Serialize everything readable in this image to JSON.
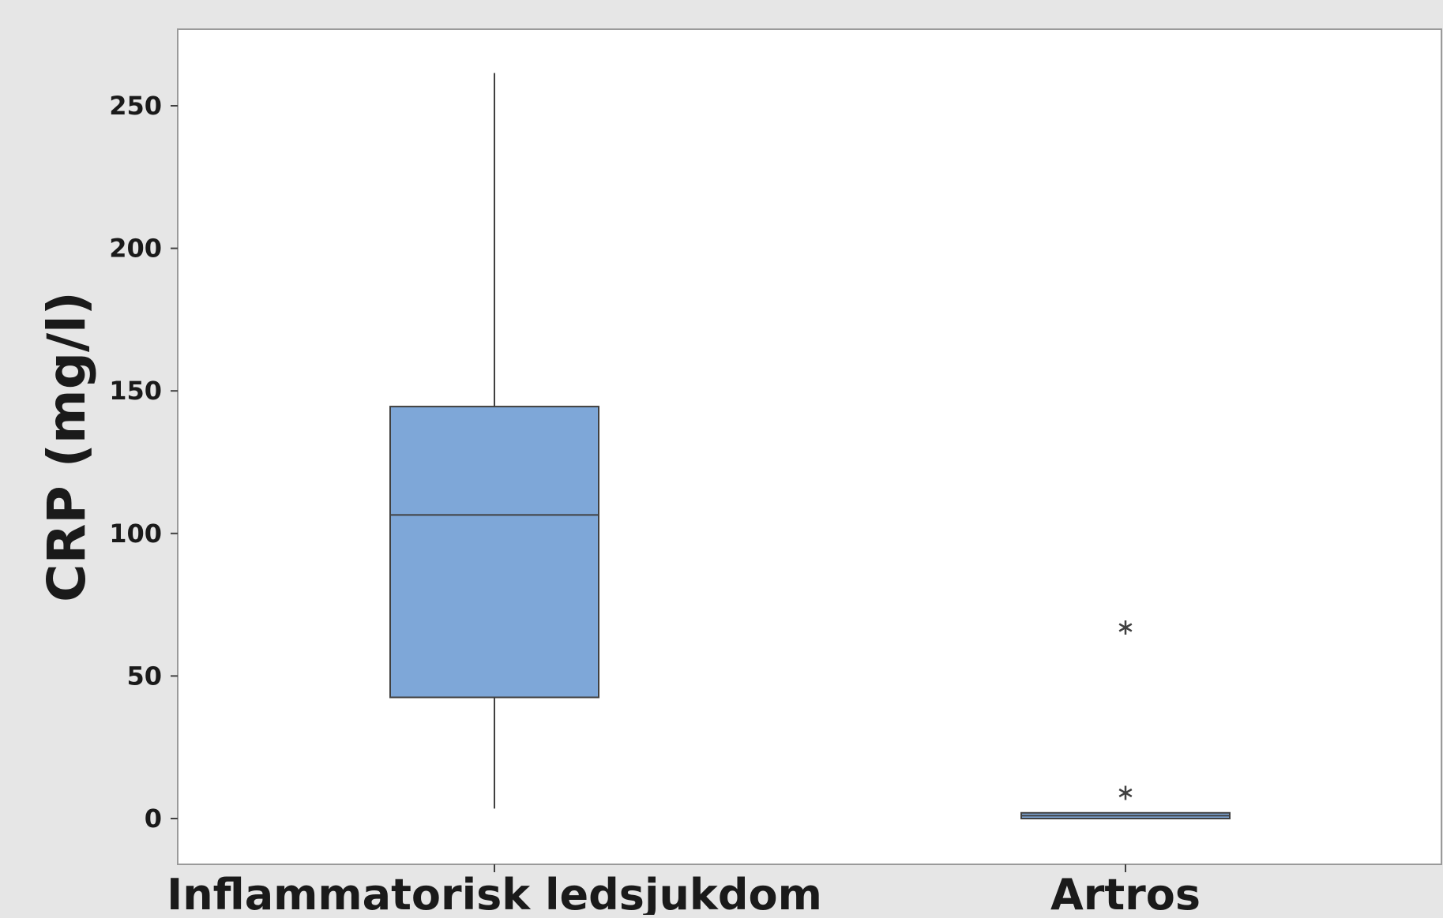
{
  "chart_data": {
    "type": "boxplot",
    "title": "",
    "xlabel": "",
    "ylabel": "CRP (mg/l)",
    "ylim": [
      -15,
      275
    ],
    "yticks": [
      0,
      50,
      100,
      150,
      200,
      250
    ],
    "grid": false,
    "legend": "none",
    "box_color": "#7ea7d8",
    "line_color": "#404040",
    "categories": [
      "Inflammatorisk ledsjukdom",
      "Artros"
    ],
    "series": [
      {
        "category": "Inflammatorisk ledsjukdom",
        "whisker_low": 3.5,
        "q1": 42.5,
        "median": 106.5,
        "q3": 144.5,
        "whisker_high": 261.5,
        "outliers": []
      },
      {
        "category": "Artros",
        "whisker_low": 0,
        "q1": 0,
        "median": 1,
        "q3": 2,
        "whisker_high": 2,
        "outliers": [
          9,
          67
        ]
      }
    ]
  }
}
